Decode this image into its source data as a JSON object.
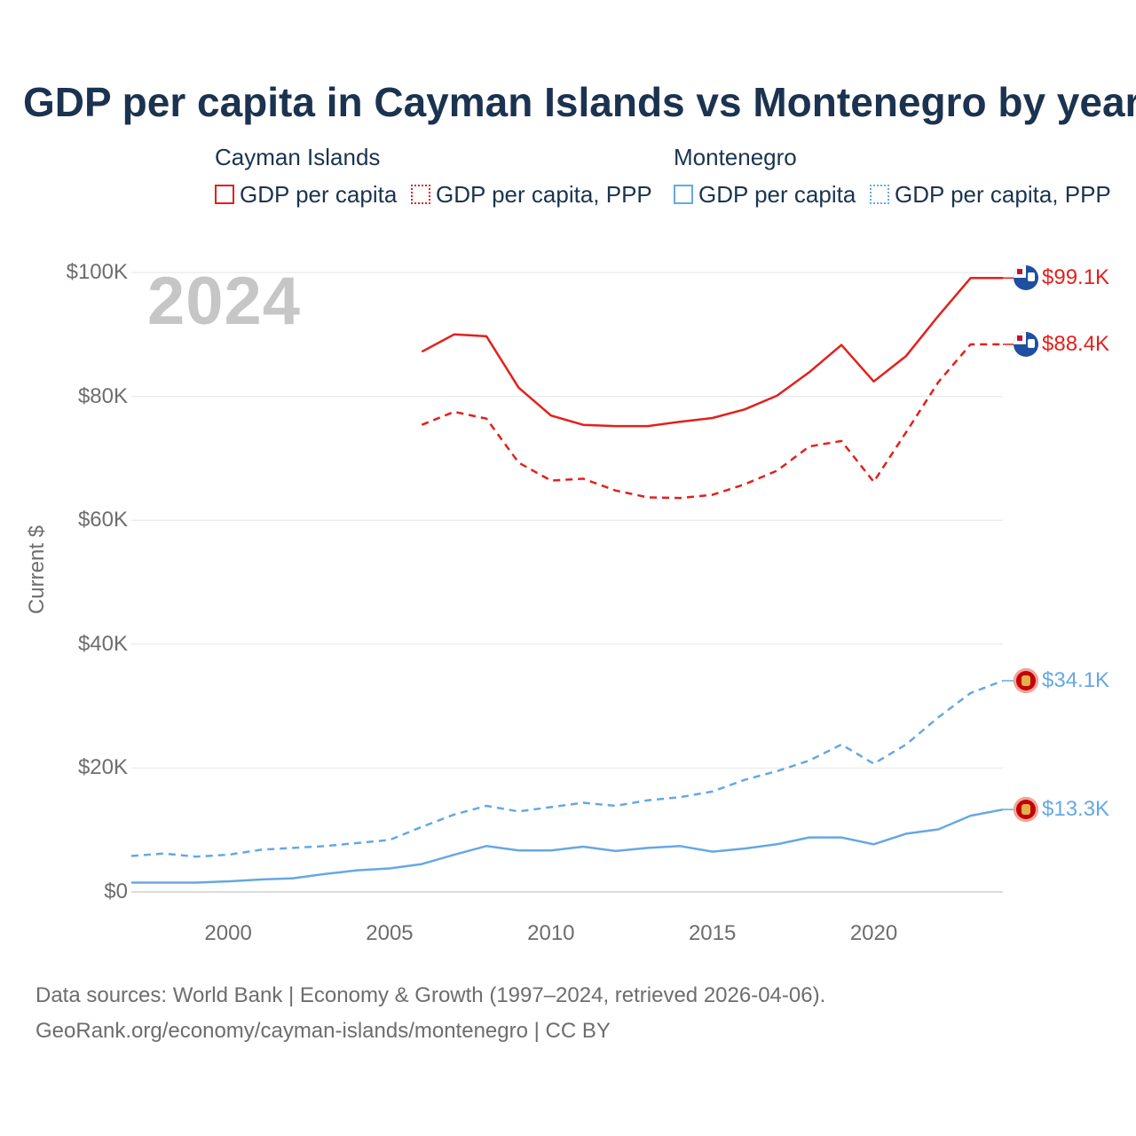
{
  "title": "GDP per capita in Cayman Islands vs Montenegro by year",
  "year_label": "2024",
  "legend": {
    "groups": [
      {
        "country": "Cayman Islands",
        "color": "#e3201b",
        "items": [
          {
            "label": "GDP per capita",
            "style": "solid"
          },
          {
            "label": "GDP per capita, PPP",
            "style": "dotted"
          }
        ]
      },
      {
        "country": "Montenegro",
        "color": "#65a8e4",
        "items": [
          {
            "label": "GDP per capita",
            "style": "solid"
          },
          {
            "label": "GDP per capita, PPP",
            "style": "dotted"
          }
        ]
      }
    ]
  },
  "source": {
    "line1": "Data sources: World Bank | Economy & Growth (1997–2024, retrieved 2026-04-06).",
    "line2": "GeoRank.org/economy/cayman-islands/montenegro | CC BY"
  },
  "chart_data": {
    "type": "line",
    "title": "GDP per capita in Cayman Islands vs Montenegro by year",
    "xlabel": "",
    "ylabel": "Current $",
    "xlim": [
      1997,
      2024
    ],
    "ylim": [
      0,
      100000
    ],
    "x_ticks": [
      2000,
      2005,
      2010,
      2015,
      2020
    ],
    "x_tick_labels": [
      "2000",
      "2005",
      "2010",
      "2015",
      "2020"
    ],
    "y_ticks": [
      0,
      20000,
      40000,
      60000,
      80000,
      100000
    ],
    "y_tick_labels": [
      "$0",
      "$20K",
      "$40K",
      "$60K",
      "$80K",
      "$100K"
    ],
    "grid": true,
    "series": [
      {
        "name": "Cayman Islands — GDP per capita",
        "color": "#e3201b",
        "dash": "solid",
        "end_label": "$99.1K",
        "flag": "cayman",
        "x": [
          2006,
          2007,
          2008,
          2009,
          2010,
          2011,
          2012,
          2013,
          2014,
          2015,
          2016,
          2017,
          2018,
          2019,
          2020,
          2021,
          2022,
          2023,
          2024
        ],
        "y": [
          87200,
          90000,
          89700,
          81400,
          76900,
          75400,
          75200,
          75200,
          75900,
          76500,
          77900,
          80100,
          83900,
          88300,
          82400,
          86500,
          93000,
          99100,
          99100
        ]
      },
      {
        "name": "Cayman Islands — GDP per capita, PPP",
        "color": "#e3201b",
        "dash": "dashed",
        "end_label": "$88.4K",
        "flag": "cayman",
        "x": [
          2006,
          2007,
          2008,
          2009,
          2010,
          2011,
          2012,
          2013,
          2014,
          2015,
          2016,
          2017,
          2018,
          2019,
          2020,
          2021,
          2022,
          2023,
          2024
        ],
        "y": [
          75400,
          77500,
          76400,
          69300,
          66400,
          66700,
          64800,
          63700,
          63600,
          64100,
          65800,
          68000,
          71900,
          72800,
          66200,
          74200,
          82300,
          88400,
          88400
        ]
      },
      {
        "name": "Montenegro — GDP per capita, PPP",
        "color": "#65a8e4",
        "dash": "dashed",
        "end_label": "$34.1K",
        "flag": "montenegro",
        "x": [
          1997,
          1998,
          1999,
          2000,
          2001,
          2002,
          2003,
          2004,
          2005,
          2006,
          2007,
          2008,
          2009,
          2010,
          2011,
          2012,
          2013,
          2014,
          2015,
          2016,
          2017,
          2018,
          2019,
          2020,
          2021,
          2022,
          2023,
          2024
        ],
        "y": [
          5800,
          6200,
          5700,
          6000,
          6800,
          7100,
          7400,
          7900,
          8400,
          10500,
          12500,
          13900,
          13000,
          13700,
          14400,
          13900,
          14800,
          15300,
          16200,
          18100,
          19500,
          21200,
          23800,
          20700,
          23800,
          28200,
          32100,
          34100
        ]
      },
      {
        "name": "Montenegro — GDP per capita",
        "color": "#65a8e4",
        "dash": "solid",
        "end_label": "$13.3K",
        "flag": "montenegro",
        "x": [
          1997,
          1998,
          1999,
          2000,
          2001,
          2002,
          2003,
          2004,
          2005,
          2006,
          2007,
          2008,
          2009,
          2010,
          2011,
          2012,
          2013,
          2014,
          2015,
          2016,
          2017,
          2018,
          2019,
          2020,
          2021,
          2022,
          2023,
          2024
        ],
        "y": [
          1500,
          1500,
          1500,
          1700,
          2000,
          2200,
          2900,
          3500,
          3800,
          4500,
          6000,
          7400,
          6700,
          6700,
          7300,
          6600,
          7100,
          7400,
          6500,
          7000,
          7700,
          8800,
          8800,
          7700,
          9400,
          10100,
          12300,
          13300
        ]
      }
    ]
  }
}
